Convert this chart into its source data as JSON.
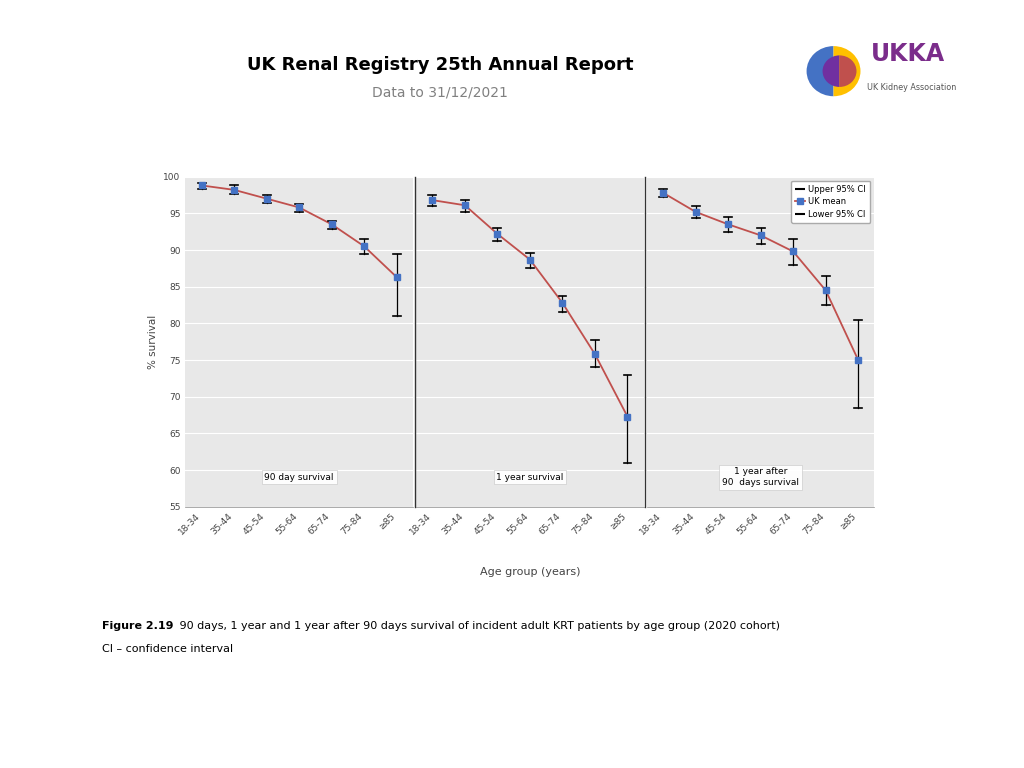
{
  "title": "UK Renal Registry 25th Annual Report",
  "subtitle": "Data to 31/12/2021",
  "xlabel": "Age group (years)",
  "ylabel": "% survival",
  "age_groups": [
    "18-34",
    "35-44",
    "45-54",
    "55-64",
    "65-74",
    "75-84",
    "≥85"
  ],
  "ylim": [
    55,
    100
  ],
  "yticks": [
    55,
    60,
    65,
    70,
    75,
    80,
    85,
    90,
    95,
    100
  ],
  "panels": [
    {
      "label": "90 day survival",
      "mean": [
        98.8,
        98.2,
        97.0,
        95.8,
        93.5,
        90.5,
        86.3
      ],
      "upper": [
        99.2,
        98.8,
        97.5,
        96.3,
        94.0,
        91.5,
        89.5
      ],
      "lower": [
        98.3,
        97.6,
        96.4,
        95.2,
        92.9,
        89.4,
        81.0
      ]
    },
    {
      "label": "1 year survival",
      "mean": [
        96.8,
        96.1,
        92.2,
        88.7,
        82.8,
        75.8,
        67.3
      ],
      "upper": [
        97.5,
        96.8,
        93.0,
        89.6,
        83.8,
        77.8,
        73.0
      ],
      "lower": [
        96.0,
        95.2,
        91.2,
        87.6,
        81.5,
        74.0,
        61.0
      ]
    },
    {
      "label": "1 year after\n90  days survival",
      "mean": [
        97.8,
        95.2,
        93.5,
        92.0,
        89.8,
        84.5,
        75.0
      ],
      "upper": [
        98.3,
        96.0,
        94.5,
        93.0,
        91.5,
        86.5,
        80.5
      ],
      "lower": [
        97.2,
        94.3,
        92.4,
        90.8,
        88.0,
        82.5,
        68.5
      ]
    }
  ],
  "line_color": "#c0504d",
  "marker_color": "#4472c4",
  "errorbar_color": "#000000",
  "bg_color": "#e8e8e8",
  "fig_bg_color": "#ffffff",
  "caption_bold": "Figure 2.19",
  "caption_normal": " 90 days, 1 year and 1 year after 90 days survival of incident adult KRT patients by age group (2020 cohort)",
  "caption_line2": "CI – confidence interval",
  "legend_entries": [
    "Upper 95% CI",
    "UK mean",
    "Lower 95% CI"
  ]
}
